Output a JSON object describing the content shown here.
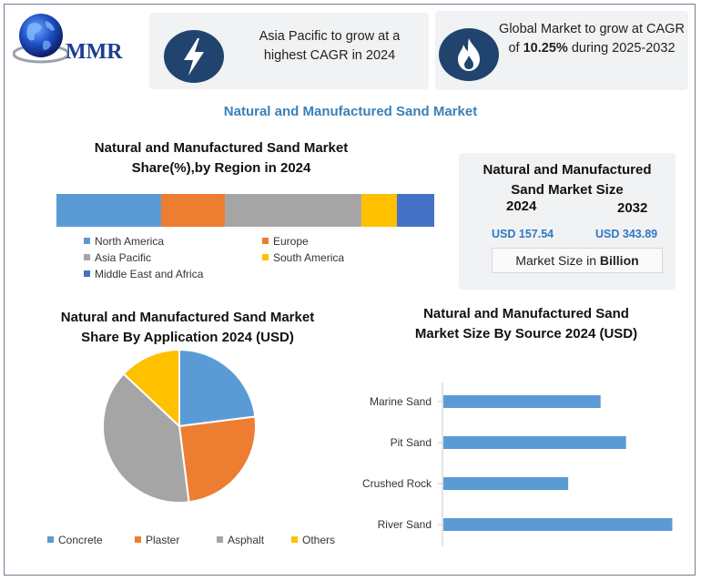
{
  "brand": {
    "logo_text": "MMR"
  },
  "highlights": [
    {
      "icon": "lightning-bolt-icon",
      "text_line1": "Asia Pacific to grow at a",
      "text_line2": "highest CAGR in 2024"
    },
    {
      "icon": "flame-icon",
      "text_line1": "Global Market to grow at CAGR",
      "text_pre": "of ",
      "text_bold": "10.25%",
      "text_post": " during 2025-2032"
    }
  ],
  "main_title": "Natural and Manufactured Sand Market",
  "market_size": {
    "title_line1": "Natural and Manufactured",
    "title_line2": "Sand Market Size",
    "year_start": "2024",
    "year_end": "2032",
    "value_start": "USD 157.54",
    "value_end": "USD 343.89",
    "unit_pre": "Market Size in ",
    "unit_bold": "Billion"
  },
  "colors": {
    "icon_circle": "#20446e",
    "accent_blue": "#3a80b8",
    "value_blue": "#2e79c2"
  },
  "chart_data": [
    {
      "type": "bar",
      "orientation": "horizontal-stacked",
      "title_line1": "Natural and Manufactured Sand Market",
      "title_line2": "Share(%),by Region in 2024",
      "categories": [
        "North America",
        "Europe",
        "Asia Pacific",
        "South America",
        "Middle East and Africa"
      ],
      "values": [
        27.7,
        16.9,
        36.1,
        9.4,
        9.9
      ],
      "colors": [
        "#5b9bd5",
        "#ed7d31",
        "#a5a5a5",
        "#ffc000",
        "#4472c4"
      ],
      "xlim": [
        0,
        100
      ],
      "legend_position": "bottom",
      "grid": false
    },
    {
      "type": "pie",
      "title_line1": "Natural and Manufactured Sand Market",
      "title_line2": "Share By Application 2024  (USD)",
      "categories": [
        "Concrete",
        "Plaster",
        "Asphalt",
        "Others"
      ],
      "values": [
        23,
        25,
        39,
        13
      ],
      "colors": [
        "#5b9bd5",
        "#ed7d31",
        "#a5a5a5",
        "#ffc000"
      ],
      "legend_position": "bottom"
    },
    {
      "type": "bar",
      "orientation": "horizontal",
      "title_line1": "Natural and Manufactured Sand",
      "title_line2": "Market  Size By Source 2024  (USD)",
      "categories": [
        "Marine Sand",
        "Pit Sand",
        "Crushed Rock",
        "River Sand"
      ],
      "values": [
        68,
        79,
        54,
        99
      ],
      "xlim": [
        0,
        100
      ],
      "color": "#5b9bd5",
      "grid": false
    }
  ]
}
